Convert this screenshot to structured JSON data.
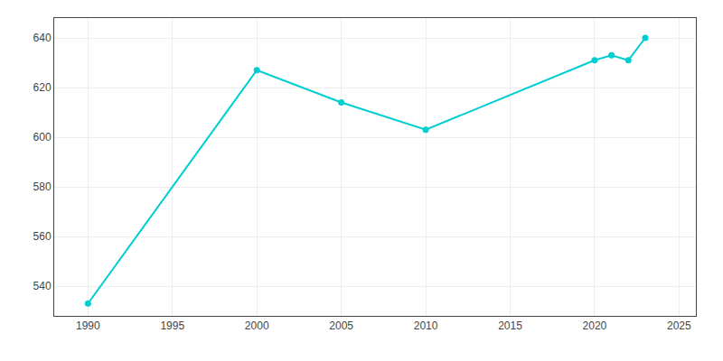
{
  "chart_data": {
    "type": "line",
    "x": [
      1990,
      2000,
      2005,
      2010,
      2020,
      2021,
      2022,
      2023
    ],
    "values": [
      533,
      627,
      614,
      603,
      631,
      633,
      631,
      640
    ],
    "color": "#00CED1",
    "marker": "circle",
    "xlim": [
      1988,
      2026
    ],
    "ylim": [
      528,
      648
    ],
    "xticks": [
      1990,
      1995,
      2000,
      2005,
      2010,
      2015,
      2020,
      2025
    ],
    "yticks": [
      540,
      560,
      580,
      600,
      620,
      640
    ],
    "grid": true
  }
}
